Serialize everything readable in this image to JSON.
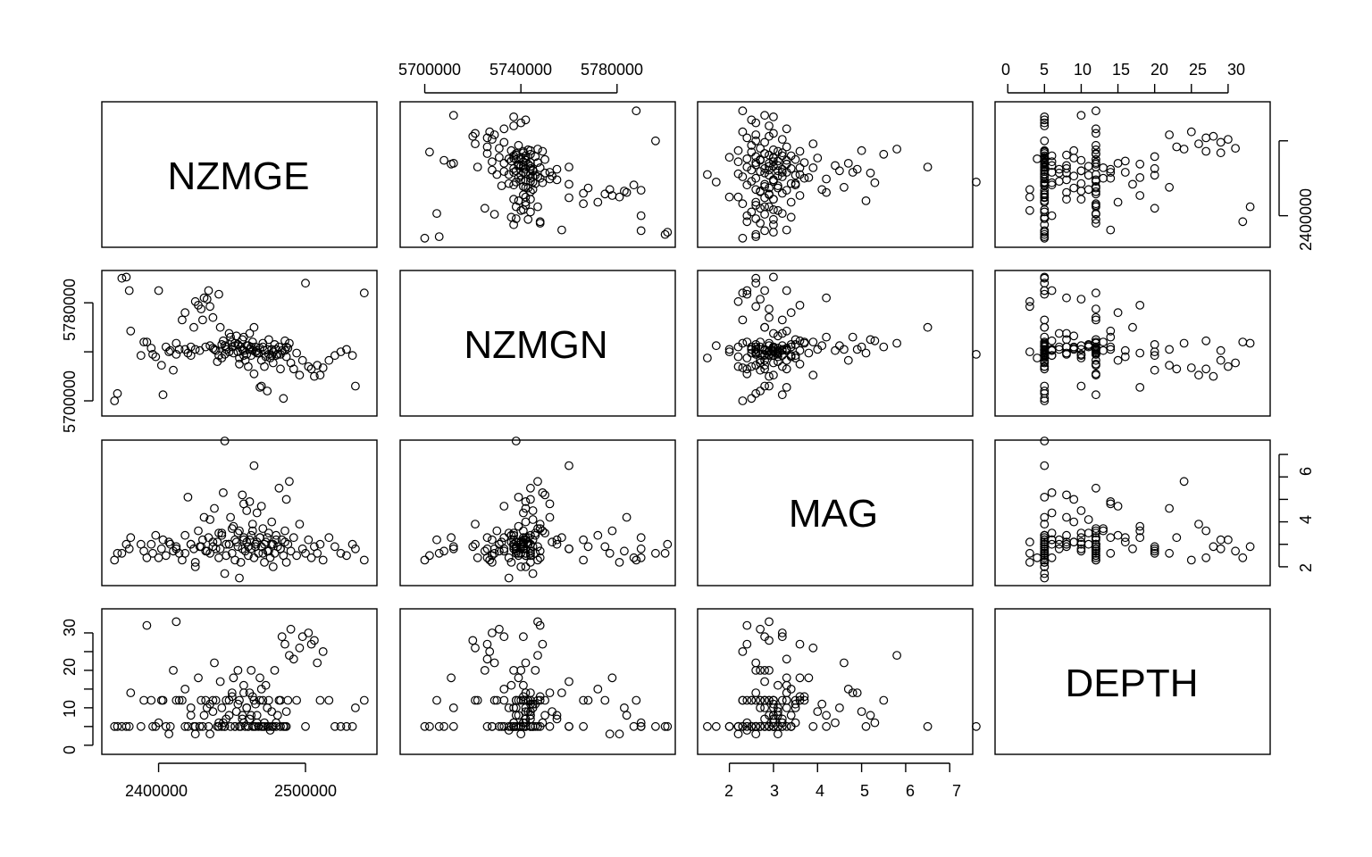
{
  "chart_data": {
    "type": "scatter",
    "title": "",
    "grid": false,
    "variables": [
      {
        "name": "NZMGE",
        "range": [
          2365000,
          2545000
        ],
        "ticks": [
          2400000,
          2500000
        ],
        "axis_labels": {
          "bottom": [
            "2400000",
            "2500000"
          ],
          "right": [
            "2400000"
          ]
        }
      },
      {
        "name": "NZMGN",
        "range": [
          5692000,
          5802000
        ],
        "ticks": [
          5700000,
          5740000,
          5780000
        ],
        "axis_labels": {
          "top": [
            "5700000",
            "5740000",
            "5780000"
          ],
          "left": [
            "5700000",
            "5780000"
          ]
        }
      },
      {
        "name": "MAG",
        "range": [
          1.4,
          7.4
        ],
        "ticks": [
          2,
          3,
          4,
          5,
          6,
          7
        ],
        "axis_labels": {
          "bottom": [
            "2",
            "3",
            "4",
            "5",
            "6",
            "7"
          ],
          "right": [
            "2",
            "4",
            "6"
          ]
        }
      },
      {
        "name": "DEPTH",
        "range": [
          -1,
          35
        ],
        "ticks": [
          0,
          5,
          10,
          15,
          20,
          25,
          30
        ],
        "axis_labels": {
          "top": [
            "0",
            "5",
            "10",
            "15",
            "20",
            "25",
            "30"
          ],
          "left": [
            "0",
            "10",
            "20",
            "30"
          ]
        }
      }
    ],
    "axis_label_texts": {
      "NZMGE_bottom": [
        "2400000",
        "2500000"
      ],
      "NZMGE_right": [
        "2400000"
      ],
      "NZMGN_top": [
        "5700000",
        "5740000",
        "5780000"
      ],
      "NZMGN_left": [
        "5700000",
        "5780000"
      ],
      "MAG_bottom": [
        "2",
        "3",
        "4",
        "5",
        "6",
        "7"
      ],
      "MAG_right": [
        "2",
        "4",
        "6"
      ],
      "DEPTH_top": [
        "0",
        "5",
        "10",
        "15",
        "20",
        "25",
        "30"
      ],
      "DEPTH_left": [
        "0",
        "10",
        "20",
        "30"
      ]
    },
    "points": [
      [
        2370000,
        5700000,
        2.3,
        5
      ],
      [
        2372000,
        5706000,
        2.6,
        5
      ],
      [
        2375000,
        5800000,
        2.6,
        5
      ],
      [
        2378000,
        5801000,
        3.0,
        5
      ],
      [
        2381000,
        5757000,
        3.3,
        14
      ],
      [
        2380000,
        5790000,
        2.8,
        5
      ],
      [
        2388000,
        5737000,
        3.0,
        5
      ],
      [
        2390000,
        5748000,
        2.7,
        12
      ],
      [
        2392000,
        5748000,
        2.4,
        32
      ],
      [
        2395000,
        5743000,
        3.0,
        12
      ],
      [
        2396000,
        5738000,
        2.6,
        5
      ],
      [
        2398000,
        5736000,
        3.4,
        5
      ],
      [
        2400000,
        5790000,
        2.4,
        6
      ],
      [
        2402000,
        5729000,
        2.8,
        12
      ],
      [
        2403000,
        5705000,
        3.2,
        12
      ],
      [
        2405000,
        5744000,
        2.5,
        5
      ],
      [
        2407000,
        5740000,
        3.1,
        3
      ],
      [
        2410000,
        5725000,
        2.7,
        20
      ],
      [
        2412000,
        5747000,
        2.9,
        33
      ],
      [
        2414000,
        5742000,
        2.6,
        12
      ],
      [
        2416000,
        5766000,
        2.3,
        12
      ],
      [
        2418000,
        5772000,
        3.4,
        15
      ],
      [
        2420000,
        5739000,
        5.1,
        5
      ],
      [
        2422000,
        5737000,
        3.0,
        10
      ],
      [
        2424000,
        5760000,
        2.8,
        5
      ],
      [
        2425000,
        5781000,
        2.2,
        3
      ],
      [
        2427000,
        5778000,
        3.6,
        18
      ],
      [
        2429000,
        5775000,
        2.9,
        12
      ],
      [
        2430000,
        5766000,
        3.2,
        5
      ],
      [
        2431000,
        5784000,
        4.2,
        8
      ],
      [
        2433000,
        5783000,
        2.7,
        10
      ],
      [
        2434000,
        5790000,
        3.3,
        5
      ],
      [
        2435000,
        5777000,
        2.6,
        3
      ],
      [
        2437000,
        5768000,
        2.9,
        12
      ],
      [
        2438000,
        5742000,
        4.6,
        22
      ],
      [
        2440000,
        5732000,
        3.1,
        5
      ],
      [
        2441000,
        5787000,
        2.4,
        5
      ],
      [
        2442000,
        5760000,
        2.8,
        17
      ],
      [
        2443000,
        5735000,
        3.5,
        10
      ],
      [
        2444000,
        5749000,
        5.3,
        6
      ],
      [
        2445000,
        5738000,
        7.6,
        5
      ],
      [
        2446000,
        5742000,
        2.5,
        12
      ],
      [
        2448000,
        5755000,
        3.0,
        8
      ],
      [
        2449000,
        5752000,
        4.2,
        5
      ],
      [
        2450000,
        5744000,
        2.6,
        14
      ],
      [
        2451000,
        5739000,
        3.8,
        18
      ],
      [
        2452000,
        5747000,
        2.3,
        5
      ],
      [
        2453000,
        5753000,
        3.1,
        9
      ],
      [
        2454000,
        5740000,
        2.9,
        20
      ],
      [
        2455000,
        5730000,
        3.6,
        12
      ],
      [
        2456000,
        5744000,
        2.2,
        5
      ],
      [
        2457000,
        5750000,
        5.2,
        8
      ],
      [
        2458000,
        5741000,
        3.3,
        16
      ],
      [
        2459000,
        5733000,
        2.7,
        5
      ],
      [
        2460000,
        5745000,
        4.5,
        10
      ],
      [
        2461000,
        5728000,
        2.5,
        5
      ],
      [
        2462000,
        5755000,
        3.2,
        7
      ],
      [
        2463000,
        5737000,
        2.8,
        20
      ],
      [
        2464000,
        5748000,
        3.9,
        5
      ],
      [
        2465000,
        5722000,
        2.4,
        12
      ],
      [
        2466000,
        5744000,
        3.0,
        11
      ],
      [
        2467000,
        5741000,
        4.4,
        6
      ],
      [
        2468000,
        5739000,
        2.6,
        5
      ],
      [
        2469000,
        5711000,
        3.3,
        18
      ],
      [
        2470000,
        5712000,
        2.9,
        5
      ],
      [
        2471000,
        5747000,
        3.7,
        12
      ],
      [
        2472000,
        5728000,
        2.2,
        5
      ],
      [
        2473000,
        5736000,
        3.1,
        16
      ],
      [
        2474000,
        5708000,
        2.7,
        5
      ],
      [
        2475000,
        5750000,
        3.5,
        12
      ],
      [
        2476000,
        5735000,
        2.4,
        4
      ],
      [
        2477000,
        5742000,
        4.0,
        9
      ],
      [
        2478000,
        5731000,
        3.0,
        5
      ],
      [
        2479000,
        5746000,
        2.6,
        20
      ],
      [
        2480000,
        5737000,
        3.4,
        5
      ],
      [
        2481000,
        5738000,
        2.9,
        8
      ],
      [
        2482000,
        5744000,
        5.5,
        12
      ],
      [
        2483000,
        5726000,
        2.8,
        5
      ],
      [
        2484000,
        5741000,
        3.2,
        29
      ],
      [
        2485000,
        5702000,
        2.5,
        5
      ],
      [
        2486000,
        5749000,
        3.6,
        27
      ],
      [
        2487000,
        5736000,
        2.2,
        5
      ],
      [
        2488000,
        5743000,
        3.0,
        12
      ],
      [
        2489000,
        5747000,
        5.8,
        24
      ],
      [
        2490000,
        5731000,
        2.7,
        31
      ],
      [
        2492000,
        5726000,
        3.3,
        23
      ],
      [
        2494000,
        5739000,
        2.5,
        12
      ],
      [
        2496000,
        5721000,
        3.9,
        26
      ],
      [
        2498000,
        5733000,
        2.8,
        29
      ],
      [
        2500000,
        5796000,
        2.6,
        5
      ],
      [
        2502000,
        5728000,
        3.2,
        30
      ],
      [
        2504000,
        5726000,
        2.4,
        27
      ],
      [
        2506000,
        5720000,
        2.9,
        28
      ],
      [
        2508000,
        5729000,
        2.6,
        22
      ],
      [
        2510000,
        5721000,
        3.0,
        12
      ],
      [
        2512000,
        5727000,
        2.3,
        25
      ],
      [
        2516000,
        5733000,
        3.3,
        12
      ],
      [
        2520000,
        5737000,
        2.9,
        5
      ],
      [
        2524000,
        5740000,
        2.6,
        5
      ],
      [
        2528000,
        5742000,
        2.5,
        5
      ],
      [
        2532000,
        5737000,
        3.0,
        5
      ],
      [
        2534000,
        5712000,
        2.8,
        10
      ],
      [
        2540000,
        5788000,
        2.3,
        12
      ],
      [
        2465000,
        5760000,
        6.5,
        5
      ],
      [
        2458000,
        5752000,
        4.8,
        14
      ],
      [
        2435000,
        5745000,
        4.1,
        11
      ],
      [
        2470000,
        5733000,
        4.7,
        15
      ],
      [
        2425000,
        5742000,
        2.0,
        5
      ],
      [
        2455000,
        5735000,
        1.5,
        5
      ],
      [
        2445000,
        5745000,
        1.7,
        5
      ],
      [
        2478000,
        5740000,
        2.0,
        5
      ],
      [
        2487000,
        5744000,
        5.0,
        9
      ],
      [
        2462000,
        5742000,
        4.9,
        14
      ],
      [
        2450000,
        5748000,
        3.7,
        13
      ],
      [
        2441000,
        5737000,
        3.5,
        6
      ],
      [
        2448000,
        5740000,
        3.0,
        12
      ],
      [
        2452000,
        5745000,
        3.2,
        5
      ],
      [
        2457000,
        5742000,
        2.8,
        7
      ],
      [
        2460000,
        5738000,
        3.1,
        10
      ],
      [
        2463000,
        5744000,
        3.4,
        8
      ],
      [
        2466000,
        5740000,
        2.9,
        5
      ],
      [
        2469000,
        5743000,
        3.3,
        12
      ],
      [
        2472000,
        5741000,
        3.0,
        6
      ],
      [
        2475000,
        5738000,
        2.7,
        5
      ],
      [
        2437000,
        5743000,
        3.1,
        9
      ],
      [
        2439000,
        5741000,
        2.8,
        12
      ],
      [
        2443000,
        5746000,
        3.4,
        5
      ],
      [
        2446000,
        5744000,
        3.0,
        7
      ],
      [
        2454000,
        5746000,
        3.5,
        11
      ],
      [
        2458000,
        5737000,
        3.2,
        6
      ],
      [
        2461000,
        5745000,
        2.9,
        5
      ],
      [
        2464000,
        5741000,
        3.6,
        13
      ],
      [
        2467000,
        5739000,
        3.1,
        8
      ],
      [
        2471000,
        5744000,
        2.6,
        5
      ],
      [
        2474000,
        5742000,
        3.3,
        10
      ],
      [
        2477000,
        5737000,
        3.0,
        5
      ],
      [
        2480000,
        5742000,
        3.2,
        6
      ],
      [
        2483000,
        5738000,
        2.8,
        12
      ],
      [
        2486000,
        5741000,
        3.1,
        5
      ],
      [
        2432000,
        5744000,
        2.7,
        12
      ],
      [
        2428000,
        5741000,
        2.9,
        5
      ],
      [
        2422000,
        5744000,
        3.0,
        8
      ],
      [
        2418000,
        5742000,
        2.6,
        5
      ],
      [
        2412000,
        5738000,
        2.8,
        12
      ],
      [
        2408000,
        5741000,
        3.0,
        5
      ]
    ]
  }
}
